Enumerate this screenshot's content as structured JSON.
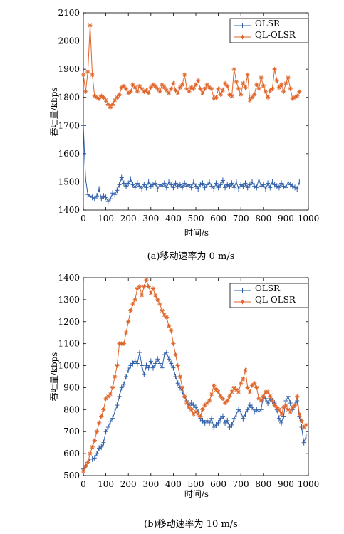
{
  "chart_data": [
    {
      "type": "line",
      "caption": "(a)移动速率为 0 m/s",
      "xlabel": "时间/s",
      "ylabel": "吞吐量/kbps",
      "xlim": [
        0,
        1000
      ],
      "ylim": [
        1400,
        2100
      ],
      "xticks": [
        0,
        100,
        200,
        300,
        400,
        500,
        600,
        700,
        800,
        900,
        1000
      ],
      "yticks": [
        1400,
        1500,
        1600,
        1700,
        1800,
        1900,
        2000,
        2100
      ],
      "legend_position": "top-right",
      "grid": false,
      "x": [
        0,
        10,
        20,
        30,
        40,
        50,
        60,
        70,
        80,
        90,
        100,
        110,
        120,
        130,
        140,
        150,
        160,
        170,
        180,
        190,
        200,
        210,
        220,
        230,
        240,
        250,
        260,
        270,
        280,
        290,
        300,
        310,
        320,
        330,
        340,
        350,
        360,
        370,
        380,
        390,
        400,
        410,
        420,
        430,
        440,
        450,
        460,
        470,
        480,
        490,
        500,
        510,
        520,
        530,
        540,
        550,
        560,
        570,
        580,
        590,
        600,
        610,
        620,
        630,
        640,
        650,
        660,
        670,
        680,
        690,
        700,
        710,
        720,
        730,
        740,
        750,
        760,
        770,
        780,
        790,
        800,
        810,
        820,
        830,
        840,
        850,
        860,
        870,
        880,
        890,
        900,
        910,
        920,
        930,
        940,
        950,
        960
      ],
      "series": [
        {
          "name": "OLSR",
          "color": "#2e5ea8",
          "marker": "+",
          "values": [
            1700,
            1510,
            1455,
            1450,
            1445,
            1440,
            1450,
            1475,
            1440,
            1450,
            1445,
            1430,
            1440,
            1460,
            1455,
            1470,
            1490,
            1515,
            1495,
            1485,
            1495,
            1510,
            1490,
            1480,
            1495,
            1485,
            1475,
            1490,
            1480,
            1500,
            1485,
            1490,
            1495,
            1475,
            1490,
            1485,
            1495,
            1480,
            1500,
            1490,
            1480,
            1495,
            1485,
            1490,
            1480,
            1495,
            1485,
            1490,
            1480,
            1500,
            1485,
            1475,
            1490,
            1495,
            1480,
            1490,
            1500,
            1485,
            1475,
            1495,
            1480,
            1490,
            1505,
            1480,
            1490,
            1485,
            1495,
            1480,
            1500,
            1475,
            1490,
            1485,
            1495,
            1480,
            1490,
            1500,
            1485,
            1480,
            1510,
            1485,
            1490,
            1475,
            1495,
            1480,
            1500,
            1490,
            1485,
            1480,
            1495,
            1485,
            1480,
            1500,
            1490,
            1485,
            1480,
            1475,
            1500
          ]
        },
        {
          "name": "QL-OLSR",
          "color": "#e0652a",
          "marker": "*",
          "values": [
            1880,
            1820,
            1890,
            2055,
            1880,
            1805,
            1800,
            1795,
            1805,
            1800,
            1790,
            1775,
            1765,
            1775,
            1790,
            1800,
            1810,
            1835,
            1840,
            1830,
            1815,
            1820,
            1845,
            1835,
            1820,
            1840,
            1830,
            1820,
            1825,
            1815,
            1835,
            1845,
            1840,
            1830,
            1820,
            1845,
            1835,
            1825,
            1815,
            1830,
            1850,
            1825,
            1815,
            1835,
            1845,
            1880,
            1830,
            1820,
            1835,
            1830,
            1845,
            1860,
            1830,
            1815,
            1830,
            1845,
            1835,
            1830,
            1795,
            1800,
            1830,
            1810,
            1825,
            1850,
            1840,
            1810,
            1805,
            1900,
            1855,
            1830,
            1810,
            1850,
            1835,
            1880,
            1790,
            1800,
            1810,
            1845,
            1830,
            1870,
            1840,
            1820,
            1800,
            1825,
            1830,
            1900,
            1860,
            1835,
            1845,
            1820,
            1850,
            1870,
            1830,
            1795,
            1800,
            1805,
            1820
          ]
        }
      ]
    },
    {
      "type": "line",
      "caption": "(b)移动速率为 10 m/s",
      "xlabel": "时间/s",
      "ylabel": "吞吐量/kbps",
      "xlim": [
        0,
        1000
      ],
      "ylim": [
        500,
        1400
      ],
      "xticks": [
        0,
        100,
        200,
        300,
        400,
        500,
        600,
        700,
        800,
        900,
        1000
      ],
      "yticks": [
        500,
        600,
        700,
        800,
        900,
        1000,
        1100,
        1200,
        1300,
        1400
      ],
      "legend_position": "top-right",
      "grid": false,
      "x": [
        0,
        10,
        20,
        30,
        40,
        50,
        60,
        70,
        80,
        90,
        100,
        110,
        120,
        130,
        140,
        150,
        160,
        170,
        180,
        190,
        200,
        210,
        220,
        230,
        240,
        250,
        260,
        270,
        280,
        290,
        300,
        310,
        320,
        330,
        340,
        350,
        360,
        370,
        380,
        390,
        400,
        410,
        420,
        430,
        440,
        450,
        460,
        470,
        480,
        490,
        500,
        510,
        520,
        530,
        540,
        550,
        560,
        570,
        580,
        590,
        600,
        610,
        620,
        630,
        640,
        650,
        660,
        670,
        680,
        690,
        700,
        710,
        720,
        730,
        740,
        750,
        760,
        770,
        780,
        790,
        800,
        810,
        820,
        830,
        840,
        850,
        860,
        870,
        880,
        890,
        900,
        910,
        920,
        930,
        940,
        950,
        960,
        970,
        980,
        990
      ],
      "series": [
        {
          "name": "OLSR",
          "color": "#2e5ea8",
          "marker": "+",
          "values": [
            530,
            545,
            560,
            575,
            575,
            580,
            600,
            625,
            630,
            650,
            700,
            720,
            745,
            760,
            790,
            820,
            860,
            900,
            915,
            950,
            980,
            1000,
            1010,
            1020,
            1010,
            1060,
            1000,
            960,
            1000,
            990,
            1020,
            990,
            1010,
            1030,
            1010,
            990,
            1050,
            1060,
            1030,
            1010,
            990,
            950,
            920,
            900,
            880,
            860,
            840,
            820,
            830,
            820,
            810,
            790,
            760,
            750,
            740,
            750,
            740,
            760,
            720,
            730,
            740,
            760,
            770,
            740,
            750,
            720,
            730,
            760,
            780,
            800,
            790,
            760,
            780,
            800,
            820,
            810,
            790,
            800,
            790,
            800,
            860,
            850,
            830,
            850,
            840,
            830,
            800,
            760,
            740,
            770,
            840,
            860,
            830,
            800,
            820,
            840,
            770,
            720,
            650,
            680
          ]
        },
        {
          "name": "QL-OLSR",
          "color": "#e0652a",
          "marker": "*",
          "values": [
            520,
            540,
            560,
            600,
            630,
            660,
            700,
            740,
            770,
            800,
            850,
            860,
            870,
            900,
            950,
            1000,
            1100,
            1100,
            1100,
            1150,
            1200,
            1250,
            1280,
            1300,
            1350,
            1360,
            1320,
            1360,
            1390,
            1360,
            1330,
            1350,
            1320,
            1300,
            1280,
            1250,
            1230,
            1220,
            1180,
            1160,
            1100,
            1050,
            1000,
            950,
            900,
            860,
            830,
            810,
            800,
            780,
            790,
            780,
            770,
            800,
            820,
            830,
            840,
            870,
            910,
            890,
            880,
            860,
            850,
            830,
            840,
            860,
            880,
            900,
            890,
            880,
            920,
            940,
            980,
            900,
            880,
            910,
            920,
            900,
            850,
            840,
            860,
            880,
            880,
            860,
            840,
            820,
            810,
            800,
            780,
            810,
            820,
            800,
            790,
            810,
            820,
            860,
            780,
            750,
            720,
            730
          ]
        }
      ]
    }
  ]
}
